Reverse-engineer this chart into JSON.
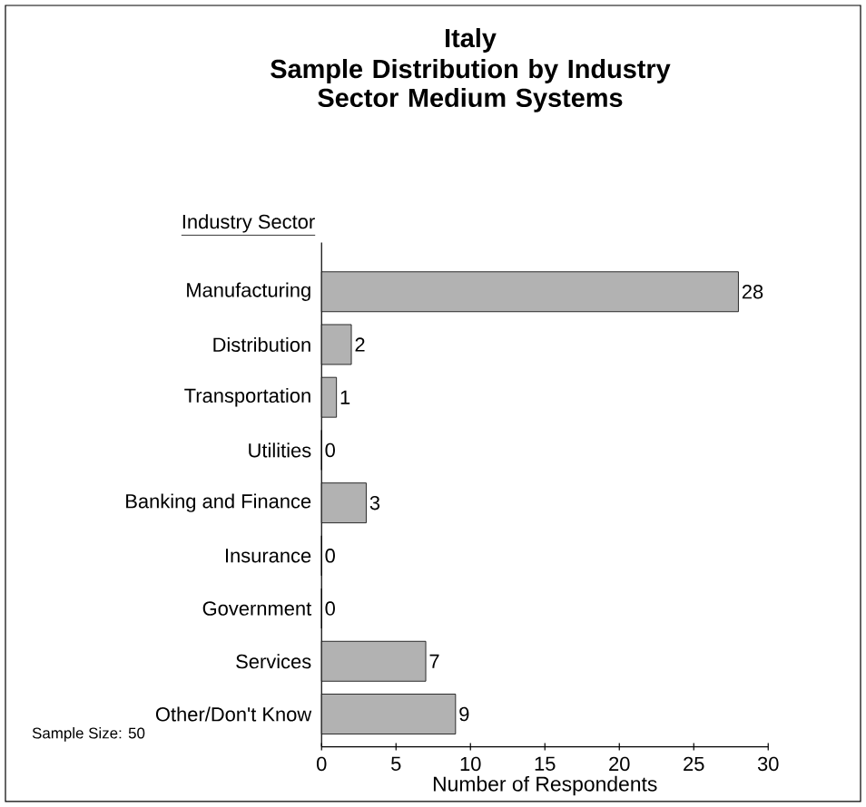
{
  "chart_data": {
    "type": "bar",
    "orientation": "horizontal",
    "title": "Italy",
    "subtitle": "Sample Distribution by Industry Sector Medium Systems",
    "ylabel": "Industry Sector",
    "xlabel": "Number of Respondents",
    "categories": [
      "Manufacturing",
      "Distribution",
      "Transportation",
      "Utilities",
      "Banking and Finance",
      "Insurance",
      "Government",
      "Services",
      "Other/Don't Know"
    ],
    "values": [
      28,
      2,
      1,
      0,
      3,
      0,
      0,
      7,
      9
    ],
    "color": "#000000",
    "xlim": [
      0,
      30
    ],
    "xticks": [
      0,
      5,
      10,
      15,
      20,
      25,
      30
    ],
    "data_labels": true,
    "grid": false,
    "legend": false,
    "annotations": [
      "Sample Size:  50"
    ]
  }
}
